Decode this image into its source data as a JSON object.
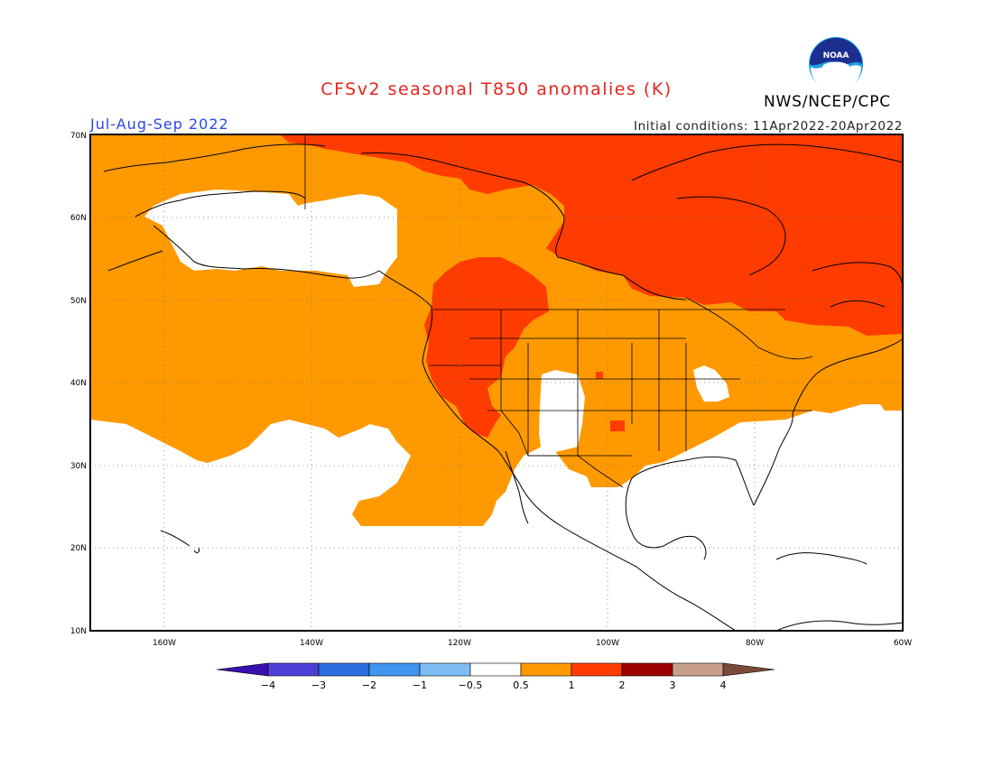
{
  "header": {
    "title": "CFSv2 seasonal T850 anomalies (K)",
    "season": "Jul-Aug-Sep 2022",
    "initial_conditions": "Initial conditions: 11Apr2022-20Apr2022",
    "agency": "NWS/NCEP/CPC",
    "logo_text": "NOAA"
  },
  "map": {
    "projection": "lat-lon",
    "lon_range": [
      -170,
      -60
    ],
    "lat_range": [
      10,
      70
    ],
    "lat_labels": [
      "70N",
      "60N",
      "50N",
      "40N",
      "30N",
      "20N",
      "10N"
    ],
    "lon_labels": [
      "160W",
      "140W",
      "120W",
      "100W",
      "80W",
      "60W"
    ],
    "grid": "dotted"
  },
  "colorbar": {
    "labels": [
      "−4",
      "−3",
      "−2",
      "−1",
      "−0.5",
      "0.5",
      "1",
      "2",
      "3",
      "4"
    ],
    "colors": [
      "#3a0fb0",
      "#4f3fd6",
      "#2a6ee0",
      "#3f95ef",
      "#7fbcf4",
      "#ffffff",
      "#ff9900",
      "#ff3c00",
      "#9e0000",
      "#c8a08c",
      "#7a4a3a"
    ]
  },
  "colors": {
    "white_range": "#ffffff",
    "orange_0_5_to_1": "#ff9900",
    "red_1_to_2": "#ff3c00"
  }
}
